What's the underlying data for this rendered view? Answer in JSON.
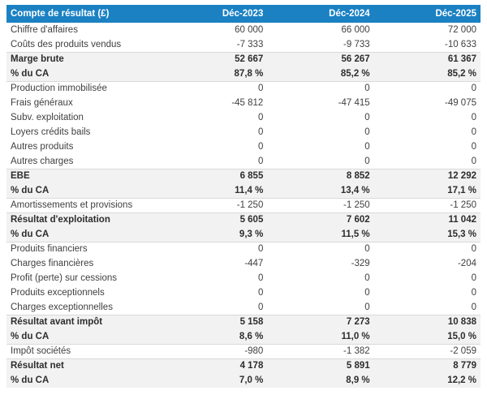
{
  "colors": {
    "header_bg": "#1b81c3",
    "header_text": "#ffffff",
    "total_row_bg": "#f2f2f2",
    "body_text": "#3f3f3f",
    "total_text": "#2d2d2d",
    "sep_border": "#d9d9d9"
  },
  "chart_data": {
    "type": "table",
    "title": "Compte de résultat (£)",
    "columns": [
      "Déc-2023",
      "Déc-2024",
      "Déc-2025"
    ],
    "rows": [
      {
        "label": "Chiffre d'affaires",
        "values": [
          "60 000",
          "66 000",
          "72 000"
        ],
        "total": false
      },
      {
        "label": "Coûts des produits vendus",
        "values": [
          "-7 333",
          "-9 733",
          "-10 633"
        ],
        "total": false
      },
      {
        "label": "Marge brute",
        "values": [
          "52 667",
          "56 267",
          "61 367"
        ],
        "total": true
      },
      {
        "label": "% du CA",
        "values": [
          "87,8 %",
          "85,2 %",
          "85,2 %"
        ],
        "total": true
      },
      {
        "label": "Production immobilisée",
        "values": [
          "0",
          "0",
          "0"
        ],
        "total": false
      },
      {
        "label": "Frais généraux",
        "values": [
          "-45 812",
          "-47 415",
          "-49 075"
        ],
        "total": false
      },
      {
        "label": "Subv. exploitation",
        "values": [
          "0",
          "0",
          "0"
        ],
        "total": false
      },
      {
        "label": "Loyers crédits bails",
        "values": [
          "0",
          "0",
          "0"
        ],
        "total": false
      },
      {
        "label": "Autres produits",
        "values": [
          "0",
          "0",
          "0"
        ],
        "total": false
      },
      {
        "label": "Autres charges",
        "values": [
          "0",
          "0",
          "0"
        ],
        "total": false
      },
      {
        "label": "EBE",
        "values": [
          "6 855",
          "8 852",
          "12 292"
        ],
        "total": true
      },
      {
        "label": "% du CA",
        "values": [
          "11,4 %",
          "13,4 %",
          "17,1 %"
        ],
        "total": true
      },
      {
        "label": "Amortissements et provisions",
        "values": [
          "-1 250",
          "-1 250",
          "-1 250"
        ],
        "total": false
      },
      {
        "label": "Résultat d'exploitation",
        "values": [
          "5 605",
          "7 602",
          "11 042"
        ],
        "total": true
      },
      {
        "label": "% du CA",
        "values": [
          "9,3 %",
          "11,5 %",
          "15,3 %"
        ],
        "total": true
      },
      {
        "label": "Produits financiers",
        "values": [
          "0",
          "0",
          "0"
        ],
        "total": false
      },
      {
        "label": "Charges financières",
        "values": [
          "-447",
          "-329",
          "-204"
        ],
        "total": false
      },
      {
        "label": "Profit (perte) sur cessions",
        "values": [
          "0",
          "0",
          "0"
        ],
        "total": false
      },
      {
        "label": "Produits exceptionnels",
        "values": [
          "0",
          "0",
          "0"
        ],
        "total": false
      },
      {
        "label": "Charges exceptionnelles",
        "values": [
          "0",
          "0",
          "0"
        ],
        "total": false
      },
      {
        "label": "Résultat avant impôt",
        "values": [
          "5 158",
          "7 273",
          "10 838"
        ],
        "total": true
      },
      {
        "label": "% du CA",
        "values": [
          "8,6 %",
          "11,0 %",
          "15,0 %"
        ],
        "total": true
      },
      {
        "label": "Impôt sociétés",
        "values": [
          "-980",
          "-1 382",
          "-2 059"
        ],
        "total": false
      },
      {
        "label": "Résultat net",
        "values": [
          "4 178",
          "5 891",
          "8 779"
        ],
        "total": true
      },
      {
        "label": "% du CA",
        "values": [
          "7,0 %",
          "8,9 %",
          "12,2 %"
        ],
        "total": true
      }
    ]
  }
}
